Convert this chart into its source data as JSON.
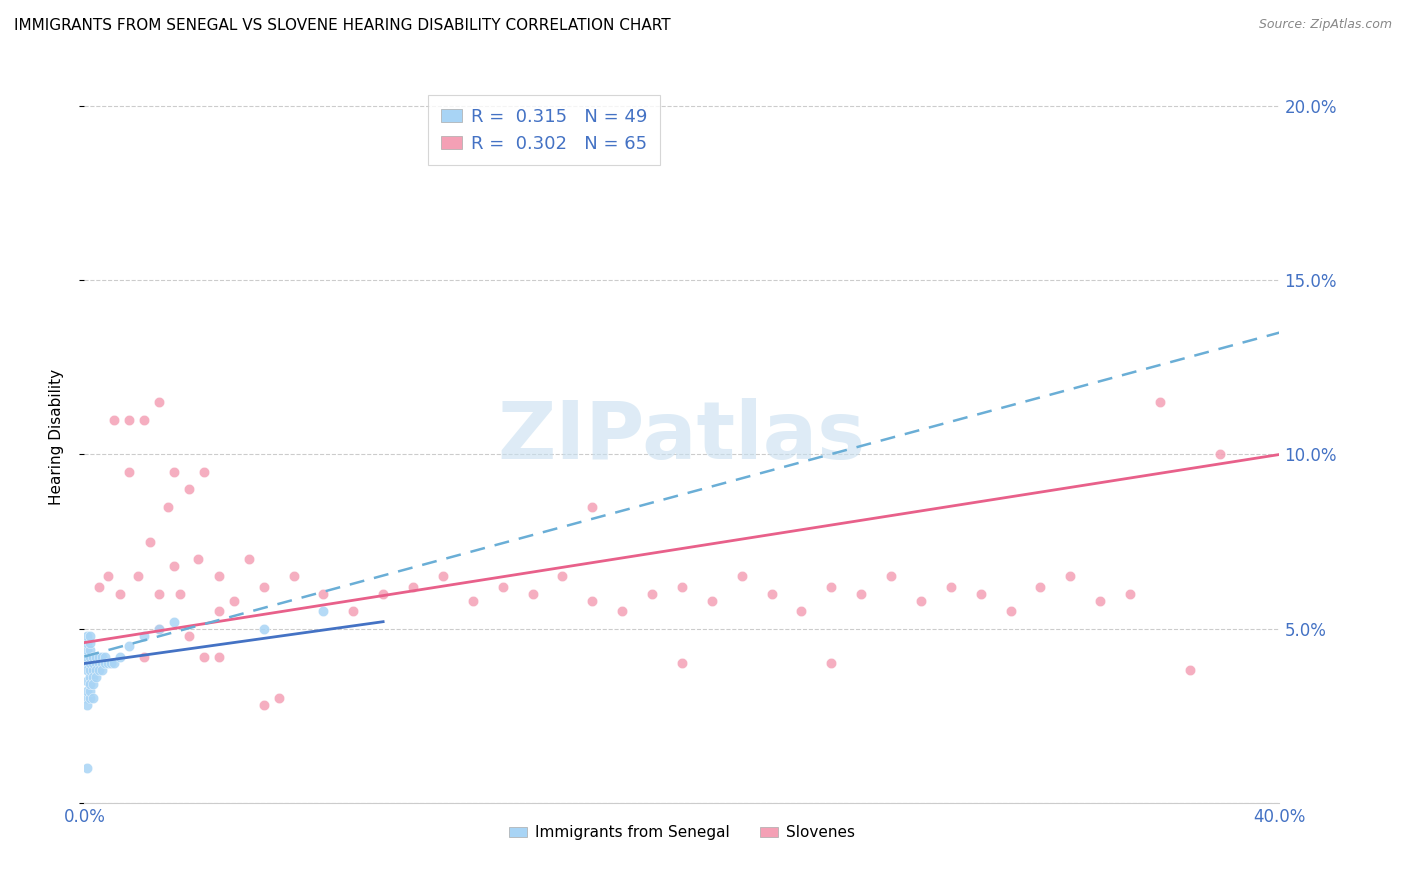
{
  "title": "IMMIGRANTS FROM SENEGAL VS SLOVENE HEARING DISABILITY CORRELATION CHART",
  "source": "Source: ZipAtlas.com",
  "ylabel": "Hearing Disability",
  "xlim": [
    0.0,
    0.4
  ],
  "ylim": [
    0.0,
    0.21
  ],
  "yticks": [
    0.0,
    0.05,
    0.1,
    0.15,
    0.2
  ],
  "ytick_labels": [
    "",
    "5.0%",
    "10.0%",
    "15.0%",
    "20.0%"
  ],
  "xtick_labels": [
    "0.0%",
    "40.0%"
  ],
  "legend1_r": "0.315",
  "legend1_n": "49",
  "legend2_r": "0.302",
  "legend2_n": "65",
  "color_blue": "#a8d4f5",
  "color_pink": "#f4a0b5",
  "color_blue_line": "#6aaed6",
  "color_pink_line": "#e8608a",
  "color_blue_solid": "#4472C4",
  "color_axis_labels": "#4472C4",
  "background_color": "#FFFFFF",
  "watermark_color": "#c8dff0",
  "senegal_x": [
    0.001,
    0.001,
    0.001,
    0.001,
    0.001,
    0.001,
    0.001,
    0.001,
    0.001,
    0.001,
    0.002,
    0.002,
    0.002,
    0.002,
    0.002,
    0.002,
    0.002,
    0.002,
    0.002,
    0.002,
    0.003,
    0.003,
    0.003,
    0.003,
    0.003,
    0.003,
    0.004,
    0.004,
    0.004,
    0.004,
    0.005,
    0.005,
    0.005,
    0.006,
    0.006,
    0.006,
    0.007,
    0.007,
    0.008,
    0.009,
    0.01,
    0.012,
    0.015,
    0.02,
    0.025,
    0.03,
    0.06,
    0.08,
    0.001
  ],
  "senegal_y": [
    0.035,
    0.04,
    0.038,
    0.042,
    0.044,
    0.046,
    0.048,
    0.03,
    0.028,
    0.032,
    0.036,
    0.038,
    0.04,
    0.042,
    0.044,
    0.03,
    0.032,
    0.034,
    0.046,
    0.048,
    0.038,
    0.04,
    0.042,
    0.036,
    0.034,
    0.03,
    0.04,
    0.042,
    0.038,
    0.036,
    0.04,
    0.042,
    0.038,
    0.04,
    0.042,
    0.038,
    0.04,
    0.042,
    0.04,
    0.04,
    0.04,
    0.042,
    0.045,
    0.048,
    0.05,
    0.052,
    0.05,
    0.055,
    0.01
  ],
  "slovene_x": [
    0.005,
    0.008,
    0.01,
    0.012,
    0.015,
    0.015,
    0.018,
    0.02,
    0.02,
    0.022,
    0.025,
    0.025,
    0.028,
    0.03,
    0.03,
    0.032,
    0.035,
    0.038,
    0.04,
    0.04,
    0.045,
    0.045,
    0.05,
    0.055,
    0.06,
    0.065,
    0.07,
    0.08,
    0.09,
    0.1,
    0.11,
    0.12,
    0.13,
    0.14,
    0.15,
    0.16,
    0.17,
    0.18,
    0.19,
    0.2,
    0.21,
    0.22,
    0.23,
    0.24,
    0.25,
    0.26,
    0.27,
    0.28,
    0.29,
    0.3,
    0.31,
    0.32,
    0.33,
    0.34,
    0.35,
    0.36,
    0.17,
    0.2,
    0.38,
    0.025,
    0.035,
    0.045,
    0.06,
    0.25,
    0.37
  ],
  "slovene_y": [
    0.062,
    0.065,
    0.11,
    0.06,
    0.095,
    0.11,
    0.065,
    0.11,
    0.042,
    0.075,
    0.115,
    0.06,
    0.085,
    0.068,
    0.095,
    0.06,
    0.09,
    0.07,
    0.095,
    0.042,
    0.065,
    0.055,
    0.058,
    0.07,
    0.062,
    0.03,
    0.065,
    0.06,
    0.055,
    0.06,
    0.062,
    0.065,
    0.058,
    0.062,
    0.06,
    0.065,
    0.058,
    0.055,
    0.06,
    0.062,
    0.058,
    0.065,
    0.06,
    0.055,
    0.062,
    0.06,
    0.065,
    0.058,
    0.062,
    0.06,
    0.055,
    0.062,
    0.065,
    0.058,
    0.06,
    0.115,
    0.085,
    0.04,
    0.1,
    0.05,
    0.048,
    0.042,
    0.028,
    0.04,
    0.038
  ],
  "senegal_line_x": [
    0.0,
    0.1
  ],
  "senegal_line_y": [
    0.04,
    0.052
  ],
  "slovene_line_x": [
    0.0,
    0.4
  ],
  "slovene_line_y": [
    0.046,
    0.1
  ],
  "blue_dash_line_x": [
    0.0,
    0.4
  ],
  "blue_dash_line_y": [
    0.042,
    0.135
  ]
}
